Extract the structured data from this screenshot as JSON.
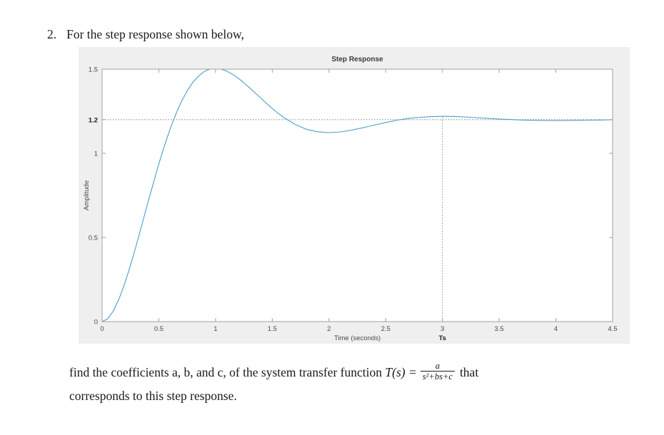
{
  "problem": {
    "number": "2.",
    "intro": "For the step response shown below,",
    "question_pre": "find the coefficients a, b, and c, of the system transfer function ",
    "tf_symbol": "T(s) =",
    "fraction": {
      "numerator": "a",
      "denominator": "s²+bs+c"
    },
    "question_post": "that",
    "question_line2": "corresponds to this step response."
  },
  "chart_data": {
    "type": "line",
    "title": "Step Response",
    "xlabel": "Time (seconds)",
    "ylabel": "Amplitude",
    "xlim": [
      0,
      4.5
    ],
    "ylim": [
      0,
      1.5
    ],
    "xticks": [
      0,
      0.5,
      1,
      1.5,
      2,
      2.5,
      3,
      3.5,
      4,
      4.5
    ],
    "yticks": [
      0,
      0.5,
      1,
      1.2,
      1.5
    ],
    "emphasized_ytick": "1.2",
    "grid": false,
    "legend": null,
    "line_color": "#4d9ec9",
    "reference_line_y": 1.2,
    "marker_line_x": 3,
    "marker_label": "Ts",
    "final_value": 1.2,
    "peak_value": 1.5,
    "peak_time": 1.0,
    "settling_time": 3,
    "series": [
      {
        "name": "step-response",
        "x": [
          0,
          0.05,
          0.1,
          0.15,
          0.2,
          0.25,
          0.3,
          0.35,
          0.4,
          0.45,
          0.5,
          0.55,
          0.6,
          0.65,
          0.7,
          0.75,
          0.8,
          0.85,
          0.9,
          0.95,
          1.0,
          1.05,
          1.1,
          1.15,
          1.2,
          1.25,
          1.3,
          1.35,
          1.4,
          1.45,
          1.5,
          1.55,
          1.6,
          1.7,
          1.8,
          1.9,
          2.0,
          2.1,
          2.2,
          2.3,
          2.4,
          2.5,
          2.6,
          2.7,
          2.8,
          2.9,
          3.0,
          3.1,
          3.2,
          3.3,
          3.4,
          3.5,
          3.6,
          3.7,
          3.8,
          3.9,
          4.0,
          4.1,
          4.2,
          4.3,
          4.4,
          4.5
        ],
        "y": [
          0.0,
          0.017,
          0.064,
          0.136,
          0.228,
          0.334,
          0.451,
          0.574,
          0.699,
          0.819,
          0.937,
          1.046,
          1.145,
          1.233,
          1.309,
          1.371,
          1.422,
          1.459,
          1.486,
          1.5,
          1.5,
          1.5,
          1.488,
          1.47,
          1.446,
          1.419,
          1.389,
          1.358,
          1.328,
          1.296,
          1.266,
          1.239,
          1.214,
          1.172,
          1.143,
          1.128,
          1.123,
          1.127,
          1.138,
          1.152,
          1.168,
          1.183,
          1.197,
          1.207,
          1.214,
          1.218,
          1.22,
          1.219,
          1.216,
          1.212,
          1.208,
          1.204,
          1.201,
          1.198,
          1.196,
          1.195,
          1.195,
          1.195,
          1.196,
          1.197,
          1.198,
          1.199
        ]
      }
    ]
  }
}
